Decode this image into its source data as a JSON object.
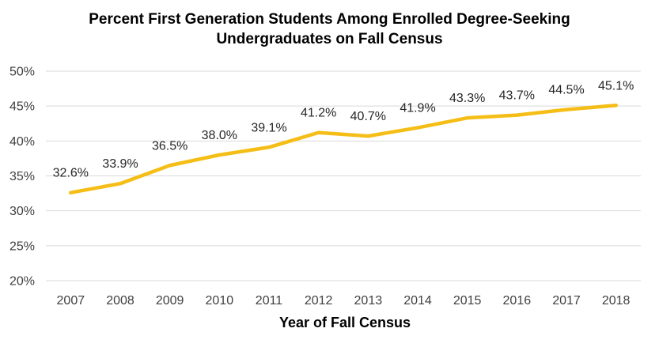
{
  "chart_data": {
    "type": "line",
    "title_line1": "Percent First Generation Students Among Enrolled Degree-Seeking",
    "title_line2": "Undergraduates on Fall Census",
    "xlabel": "Year of Fall Census",
    "ylabel": "",
    "categories": [
      "2007",
      "2008",
      "2009",
      "2010",
      "2011",
      "2012",
      "2013",
      "2014",
      "2015",
      "2016",
      "2017",
      "2018"
    ],
    "series": [
      {
        "values": [
          32.6,
          33.9,
          36.5,
          38.0,
          39.1,
          41.2,
          40.7,
          41.9,
          43.3,
          43.7,
          44.5,
          45.1
        ],
        "data_labels": [
          "32.6%",
          "33.9%",
          "36.5%",
          "38.0%",
          "39.1%",
          "41.2%",
          "40.7%",
          "41.9%",
          "43.3%",
          "43.7%",
          "44.5%",
          "45.1%"
        ],
        "color": "#F5BE16"
      }
    ],
    "ylim": [
      20,
      50
    ],
    "y_ticks": [
      20,
      25,
      30,
      35,
      40,
      45,
      50
    ],
    "y_tick_labels": [
      "20%",
      "25%",
      "30%",
      "35%",
      "40%",
      "45%",
      "50%"
    ],
    "grid": true,
    "grid_color": "#d9d9d9",
    "legend": "none"
  }
}
